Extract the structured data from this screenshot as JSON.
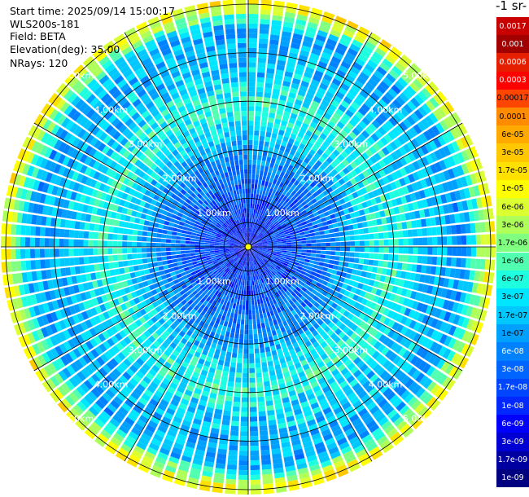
{
  "info": {
    "start_time": "Start time: 2025/09/14 15:00:17",
    "device": "WLS200s-181",
    "field": "Field: BETA",
    "elevation": "Elevation(deg): 35.00",
    "nrays": "NRays: 120"
  },
  "colorbar": {
    "unit_title": "-1 sr-",
    "labels": [
      "0.0017",
      "0.001",
      "0.0006",
      "0.0003",
      "0.00017",
      "0.0001",
      "6e-05",
      "3e-05",
      "1.7e-05",
      "1e-05",
      "6e-06",
      "3e-06",
      "1.7e-06",
      "1e-06",
      "6e-07",
      "3e-07",
      "1.7e-07",
      "1e-07",
      "6e-08",
      "3e-08",
      "1.7e-08",
      "1e-08",
      "6e-09",
      "3e-09",
      "1.7e-09",
      "1e-09"
    ],
    "colors": [
      "#c80000",
      "#a00000",
      "#e61e00",
      "#ff0000",
      "#ff4600",
      "#ff8c00",
      "#ffaa00",
      "#ffc800",
      "#ffe100",
      "#ffff00",
      "#dcff32",
      "#afff5a",
      "#80ff80",
      "#50ffb0",
      "#1effe0",
      "#00e6ff",
      "#00c8ff",
      "#00a0ff",
      "#0082ff",
      "#0064ff",
      "#0046ff",
      "#0028ff",
      "#0000ff",
      "#0000d2",
      "#0000a0",
      "#000080"
    ]
  },
  "chart_data": {
    "type": "heatmap",
    "projection": "polar PPI",
    "field": "BETA",
    "elevation_deg": 35.0,
    "n_rays": 120,
    "range_rings_km": [
      1.0,
      2.0,
      3.0,
      4.0,
      5.0
    ],
    "ring_labels": [
      "1.00km",
      "2.00km",
      "3.00km",
      "4.00km",
      "5.00km"
    ],
    "max_range_km": 5.1,
    "radial_profile": [
      {
        "range_km": 0.0,
        "value": 5e-09
      },
      {
        "range_km": 0.5,
        "value": 1.3e-08
      },
      {
        "range_km": 1.0,
        "value": 2e-08
      },
      {
        "range_km": 1.5,
        "value": 4e-08
      },
      {
        "range_km": 2.0,
        "value": 8e-08
      },
      {
        "range_km": 2.5,
        "value": 3e-07
      },
      {
        "range_km": 3.0,
        "value": 6e-07
      },
      {
        "range_km": 3.5,
        "value": 2e-07
      },
      {
        "range_km": 4.0,
        "value": 1.5e-07
      },
      {
        "range_km": 4.5,
        "value": 1e-07
      },
      {
        "range_km": 5.0,
        "value": 1e-05
      }
    ],
    "colorscale": "log",
    "vmin": 1e-09,
    "vmax": 0.0017,
    "grid": true
  }
}
